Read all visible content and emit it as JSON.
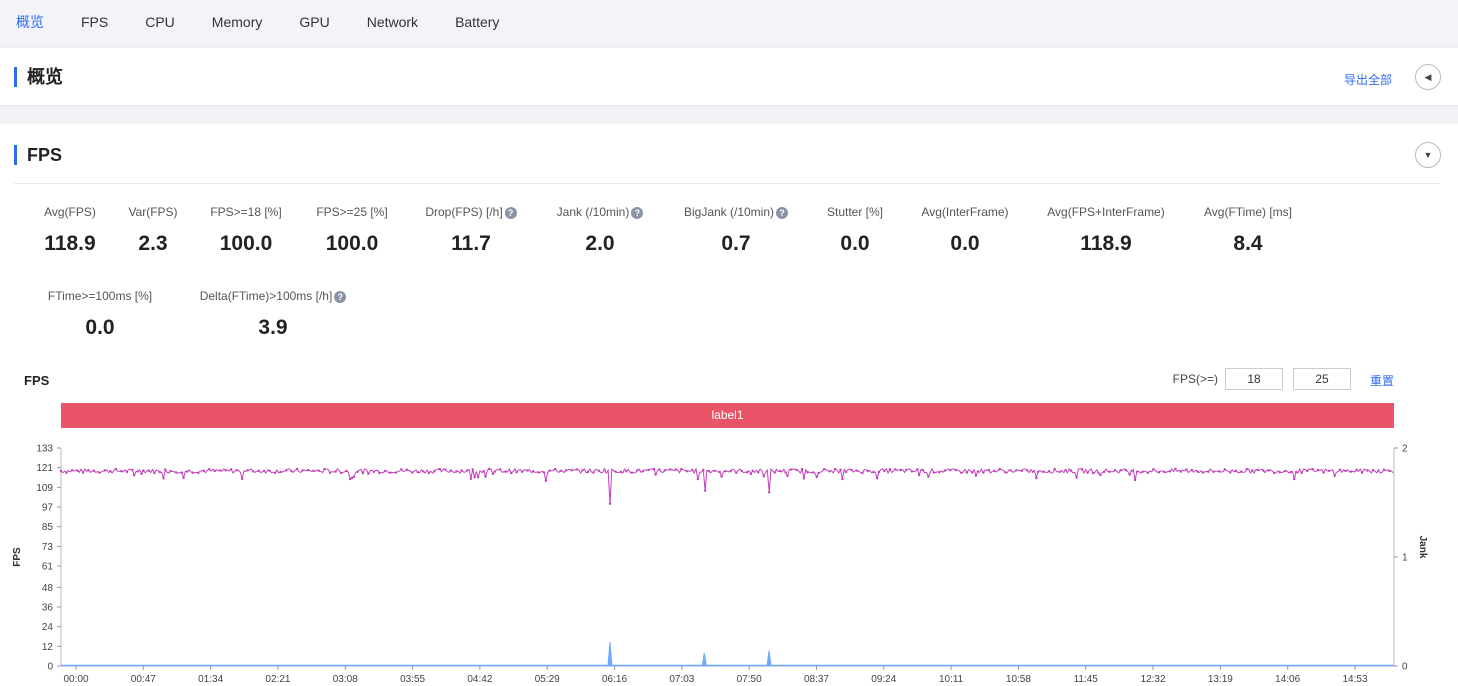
{
  "nav": {
    "tabs": [
      {
        "label": "概览",
        "active": true
      },
      {
        "label": "FPS"
      },
      {
        "label": "CPU"
      },
      {
        "label": "Memory"
      },
      {
        "label": "GPU"
      },
      {
        "label": "Network"
      },
      {
        "label": "Battery"
      }
    ]
  },
  "overview": {
    "title": "概览",
    "export_label": "导出全部",
    "collapse_icon": "triangle-left-icon"
  },
  "fps_section": {
    "title": "FPS",
    "expand_icon": "triangle-down-icon",
    "metrics_row1": [
      {
        "label": "Avg(FPS)",
        "value": "118.9"
      },
      {
        "label": "Var(FPS)",
        "value": "2.3"
      },
      {
        "label": "FPS>=18 [%]",
        "value": "100.0"
      },
      {
        "label": "FPS>=25 [%]",
        "value": "100.0"
      },
      {
        "label": "Drop(FPS) [/h]",
        "value": "11.7",
        "help": true
      },
      {
        "label": "Jank (/10min)",
        "value": "2.0",
        "help": true
      },
      {
        "label": "BigJank (/10min)",
        "value": "0.7",
        "help": true
      },
      {
        "label": "Stutter [%]",
        "value": "0.0"
      },
      {
        "label": "Avg(InterFrame)",
        "value": "0.0"
      },
      {
        "label": "Avg(FPS+InterFrame)",
        "value": "118.9"
      },
      {
        "label": "Avg(FTime) [ms]",
        "value": "8.4"
      }
    ],
    "metrics_row2": [
      {
        "label": "FTime>=100ms [%]",
        "value": "0.0"
      },
      {
        "label": "Delta(FTime)>100ms [/h]",
        "value": "3.9",
        "help": true
      }
    ],
    "help_icon": "question-circle-icon",
    "chart_title": "FPS",
    "fps_threshold_label": "FPS(>=)",
    "fps_threshold_1": "18",
    "fps_threshold_2": "25",
    "reset_label": "重置",
    "label_bar_text": "label1"
  },
  "chart_data": {
    "type": "line",
    "title": "FPS",
    "ylabel": "FPS",
    "y2label": "Jank",
    "ylim": [
      0,
      133
    ],
    "y2lim": [
      0,
      2
    ],
    "yticks": [
      0,
      12,
      24,
      36,
      48,
      61,
      73,
      85,
      97,
      109,
      121,
      133
    ],
    "y2ticks": [
      0,
      1,
      2
    ],
    "xticks": [
      "00:00",
      "00:47",
      "01:34",
      "02:21",
      "03:08",
      "03:55",
      "04:42",
      "05:29",
      "06:16",
      "07:03",
      "07:50",
      "08:37",
      "09:24",
      "10:11",
      "10:58",
      "11:45",
      "12:32",
      "13:19",
      "14:06",
      "14:53"
    ],
    "x_range_seconds": [
      0,
      947
    ],
    "series": [
      {
        "name": "FPS",
        "axis": "left",
        "color": "#c23fba",
        "baseline": 119,
        "dips": [
          {
            "t": 390,
            "v": 99
          },
          {
            "t": 457,
            "v": 107
          },
          {
            "t": 503,
            "v": 106
          },
          {
            "t": 205,
            "v": 114
          },
          {
            "t": 345,
            "v": 113
          },
          {
            "t": 555,
            "v": 114
          },
          {
            "t": 722,
            "v": 115
          }
        ]
      },
      {
        "name": "Jank",
        "axis": "right",
        "color": "#6fa8ff",
        "events": [
          {
            "t": 390,
            "v": 0.22
          },
          {
            "t": 457,
            "v": 0.12
          },
          {
            "t": 503,
            "v": 0.14
          }
        ]
      }
    ],
    "grid": false
  }
}
